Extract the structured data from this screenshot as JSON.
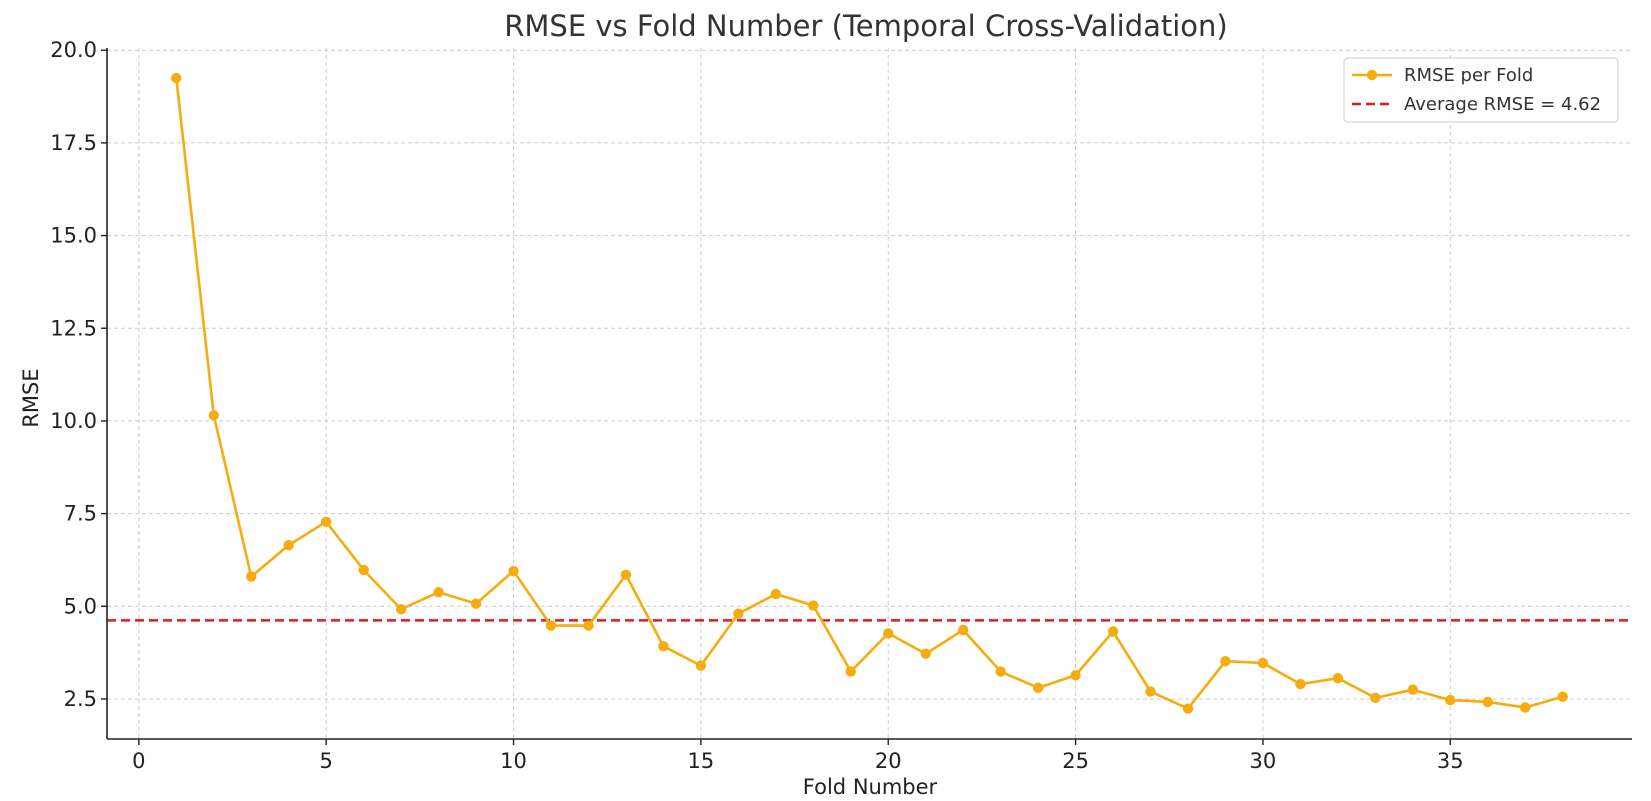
{
  "chart_data": {
    "type": "line",
    "title": "RMSE vs Fold Number (Temporal Cross-Validation)",
    "xlabel": "Fold Number",
    "ylabel": "RMSE",
    "xlim": [
      -0.85,
      39.85
    ],
    "ylim": [
      1.42,
      20.06
    ],
    "xticks": [
      0,
      5,
      10,
      15,
      20,
      25,
      30,
      35
    ],
    "yticks": [
      2.5,
      5.0,
      7.5,
      10.0,
      12.5,
      15.0,
      17.5,
      20.0
    ],
    "ytick_labels": [
      "2.5",
      "5.0",
      "7.5",
      "10.0",
      "12.5",
      "15.0",
      "17.5",
      "20.0"
    ],
    "grid": true,
    "legend_position": "top-right",
    "series": [
      {
        "name": "RMSE per Fold",
        "color": "#f5ac0f",
        "marker": "circle",
        "x": [
          1,
          2,
          3,
          4,
          5,
          6,
          7,
          8,
          9,
          10,
          11,
          12,
          13,
          14,
          15,
          16,
          17,
          18,
          19,
          20,
          21,
          22,
          23,
          24,
          25,
          26,
          27,
          28,
          29,
          30,
          31,
          32,
          33,
          34,
          35,
          36,
          37,
          38
        ],
        "y": [
          19.25,
          10.15,
          5.8,
          6.65,
          7.28,
          5.98,
          4.92,
          5.38,
          5.07,
          5.95,
          4.48,
          4.48,
          5.85,
          3.92,
          3.4,
          4.8,
          5.33,
          5.02,
          3.24,
          4.27,
          3.72,
          4.36,
          3.24,
          2.8,
          3.14,
          4.32,
          2.7,
          2.24,
          3.52,
          3.47,
          2.9,
          3.06,
          2.53,
          2.75,
          2.47,
          2.42,
          2.27,
          2.56
        ]
      }
    ],
    "reference_lines": [
      {
        "name": "Average RMSE = 4.62",
        "y": 4.62,
        "color": "#e31a1c",
        "style": "dashed"
      }
    ]
  }
}
